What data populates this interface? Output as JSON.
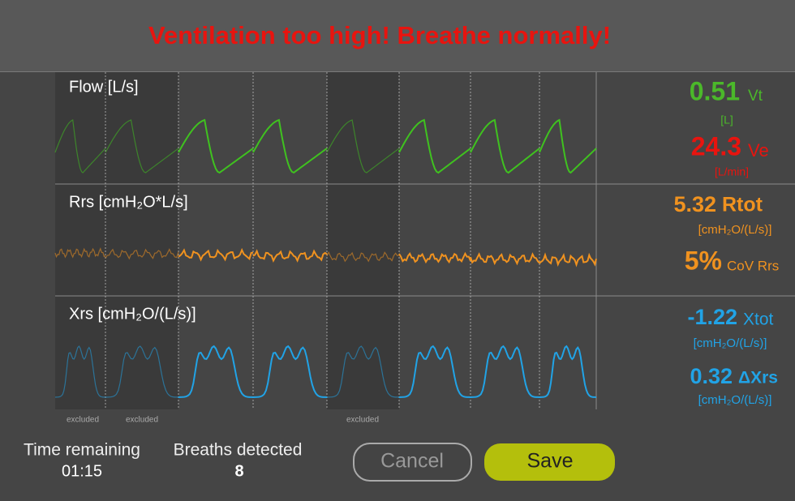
{
  "header": {
    "title": "Ventilation too high! Breathe normally!"
  },
  "panels": [
    {
      "label": "Flow [L/s]"
    },
    {
      "label": "Rrs [cmH₂O*L/s]"
    },
    {
      "label": "Xrs [cmH₂O/(L/s)]"
    }
  ],
  "excluded_labels": [
    "excluded",
    "excluded",
    "excluded"
  ],
  "metrics": [
    {
      "value": "0.51",
      "symbol": "Vt",
      "unit": "[L]"
    },
    {
      "value": "24.3",
      "symbol": "Ve",
      "unit": "[L/min]"
    },
    {
      "value": "5.32",
      "symbol": "Rtot",
      "unit": "[cmH₂O/(L/s)]"
    },
    {
      "value": "5%",
      "symbol": "CoV Rrs"
    },
    {
      "value": "-1.22",
      "symbol": "Xtot",
      "unit": "[cmH₂O/(L/s)]"
    },
    {
      "value": "0.32",
      "symbol": "ΔXrs",
      "unit": "[cmH₂O/(L/s)]"
    }
  ],
  "footer": {
    "time_label": "Time remaining",
    "time_value": "01:15",
    "breaths_label": "Breaths detected",
    "breaths_value": "8",
    "cancel": "Cancel",
    "save": "Save"
  }
}
